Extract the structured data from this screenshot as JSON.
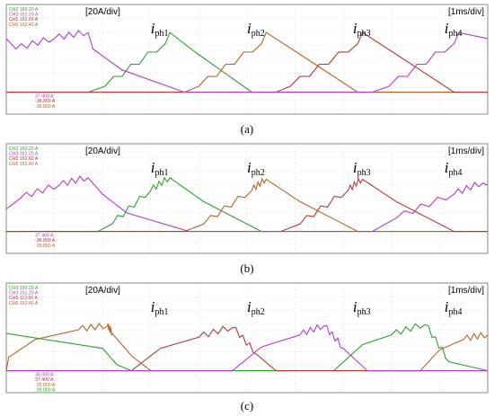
{
  "chart_data": [
    {
      "type": "line",
      "caption": "(a)",
      "scale_label": "[20A/div]",
      "time_label": "[1ms/div]",
      "channel_readouts_top": [
        "CH2    160.20 A",
        "CH3    161.20 A",
        "CH5    162.60 A",
        "CH6    163.40 A"
      ],
      "channel_readouts_bottom": [
        "37.400 A",
        "-38.800 A",
        "-39.800 A"
      ],
      "phase_labels": [
        {
          "letter": "i",
          "sub": "ph1"
        },
        {
          "letter": "i",
          "sub": "ph2"
        },
        {
          "letter": "i",
          "sub": "ph3"
        },
        {
          "letter": "i",
          "sub": "ph4"
        }
      ],
      "xlim": [
        0,
        10
      ],
      "ylim": [
        0,
        100
      ],
      "grid": true,
      "series": [
        {
          "color": "#2ca02c",
          "x": [
            0,
            1.7,
            2.05,
            3.3,
            3.4,
            3.9,
            5.1,
            5.4,
            10
          ],
          "y": [
            0,
            0,
            8,
            65,
            80,
            55,
            0,
            0,
            0
          ],
          "ripple": [
            0,
            0,
            1,
            0,
            0,
            0,
            0,
            0,
            0
          ]
        },
        {
          "color": "#b46428",
          "x": [
            0,
            3.7,
            4.0,
            5.3,
            5.4,
            6.0,
            7.3,
            10
          ],
          "y": [
            0,
            0,
            8,
            65,
            80,
            55,
            0,
            0
          ],
          "ripple": [
            0,
            0,
            1,
            0,
            0,
            0,
            0,
            0
          ]
        },
        {
          "color": "#b23a3a",
          "x": [
            0,
            5.6,
            5.9,
            7.3,
            7.4,
            8.0,
            9.3,
            10
          ],
          "y": [
            0,
            0,
            8,
            65,
            80,
            55,
            0,
            0
          ],
          "ripple": [
            0,
            0,
            1,
            0,
            0,
            0,
            0,
            0
          ]
        },
        {
          "color": "#b03cc8",
          "x": [
            0,
            0.2,
            1.0,
            1.7,
            1.8,
            2.4,
            3.7,
            7.6,
            7.95,
            9.3,
            9.4,
            10
          ],
          "y": [
            72,
            58,
            72,
            80,
            58,
            30,
            0,
            0,
            8,
            65,
            80,
            72
          ],
          "ripple": [
            0,
            1,
            1,
            0,
            0,
            0,
            0,
            0,
            1,
            0,
            0,
            0
          ]
        }
      ]
    },
    {
      "type": "line",
      "caption": "(b)",
      "scale_label": "[20A/div]",
      "time_label": "[1ms/div]",
      "channel_readouts_top": [
        "CH2    160.20 A",
        "CH3    161.20 A",
        "CH5    162.60 A",
        "CH6    163.40 A"
      ],
      "channel_readouts_bottom": [
        "37.400 A",
        "-38.800 A",
        "-39.800 A"
      ],
      "phase_labels": [
        {
          "letter": "i",
          "sub": "ph1"
        },
        {
          "letter": "i",
          "sub": "ph2"
        },
        {
          "letter": "i",
          "sub": "ph3"
        },
        {
          "letter": "i",
          "sub": "ph4"
        }
      ],
      "xlim": [
        0,
        10
      ],
      "ylim": [
        0,
        100
      ],
      "grid": true,
      "series": [
        {
          "color": "#2ca02c",
          "x": [
            0,
            1.9,
            2.2,
            3.0,
            3.4,
            4.1,
            5.3,
            10
          ],
          "y": [
            0,
            0,
            10,
            55,
            72,
            40,
            0,
            0
          ],
          "ripple": [
            0,
            0,
            1,
            1,
            0,
            0,
            0,
            0
          ]
        },
        {
          "color": "#b46428",
          "x": [
            0,
            3.7,
            4.1,
            5.1,
            5.4,
            6.1,
            7.3,
            10
          ],
          "y": [
            0,
            0,
            10,
            55,
            70,
            40,
            0,
            0
          ],
          "ripple": [
            0,
            0,
            1,
            1,
            0,
            0,
            0,
            0
          ]
        },
        {
          "color": "#b23a3a",
          "x": [
            0,
            5.7,
            6.1,
            7.1,
            7.4,
            8.1,
            9.3,
            10
          ],
          "y": [
            0,
            0,
            10,
            55,
            70,
            40,
            0,
            0
          ],
          "ripple": [
            0,
            0,
            1,
            1,
            0,
            0,
            0,
            0
          ]
        },
        {
          "color": "#b03cc8",
          "x": [
            0,
            0.3,
            1.1,
            1.7,
            2.0,
            2.5,
            3.8,
            7.6,
            8.1,
            9.3,
            9.9,
            10
          ],
          "y": [
            30,
            45,
            62,
            72,
            50,
            25,
            0,
            0,
            18,
            50,
            65,
            62
          ],
          "ripple": [
            0,
            1,
            1,
            0,
            0,
            0,
            0,
            0,
            1,
            1,
            0,
            0
          ]
        }
      ]
    },
    {
      "type": "line",
      "caption": "(c)",
      "scale_label": "[20A/div]",
      "time_label": "[1ms/div]",
      "channel_readouts_top": [
        "CH3    160.20 A",
        "CH3    151.20 A",
        "CH5    112.60 A",
        "CH6    163.40 A"
      ],
      "channel_readouts_bottom": [
        "38.000 A",
        "37.400 A",
        "-39.800 A",
        "-39.800 A"
      ],
      "phase_labels": [
        {
          "letter": "i",
          "sub": "ph1"
        },
        {
          "letter": "i",
          "sub": "ph2"
        },
        {
          "letter": "i",
          "sub": "ph3"
        },
        {
          "letter": "i",
          "sub": "ph4"
        }
      ],
      "xlim": [
        0,
        10
      ],
      "ylim": [
        0,
        100
      ],
      "grid": true,
      "series": [
        {
          "color": "#b46428",
          "x": [
            0,
            0.05,
            0.6,
            1.5,
            2.1,
            2.2,
            2.6,
            3.0,
            8.6,
            9.0,
            9.5,
            10
          ],
          "y": [
            0,
            18,
            42,
            55,
            60,
            50,
            20,
            0,
            0,
            28,
            42,
            48
          ],
          "ripple": [
            0,
            0,
            0,
            1,
            1,
            0,
            0,
            0,
            0,
            0,
            1,
            1
          ]
        },
        {
          "color": "#2ca02c",
          "x": [
            0,
            2.0,
            2.3,
            2.6,
            3.0,
            6.8,
            7.4,
            8.0,
            8.7,
            9.2,
            10
          ],
          "y": [
            50,
            30,
            8,
            0,
            0,
            0,
            35,
            48,
            62,
            12,
            0
          ],
          "ripple": [
            0,
            0,
            0,
            0,
            0,
            0,
            0,
            1,
            1,
            0,
            0
          ]
        },
        {
          "color": "#b23a3a",
          "x": [
            0,
            2.6,
            3.2,
            4.0,
            4.7,
            5.2,
            5.6,
            10
          ],
          "y": [
            0,
            0,
            30,
            45,
            58,
            22,
            0,
            0
          ],
          "ripple": [
            0,
            0,
            0,
            1,
            1,
            0,
            0,
            0
          ]
        },
        {
          "color": "#b03cc8",
          "x": [
            0,
            4.7,
            5.3,
            6.1,
            6.6,
            7.0,
            7.5,
            10
          ],
          "y": [
            0,
            0,
            32,
            48,
            60,
            30,
            0,
            0
          ],
          "ripple": [
            0,
            0,
            0,
            1,
            1,
            0,
            0,
            0
          ]
        }
      ]
    }
  ]
}
